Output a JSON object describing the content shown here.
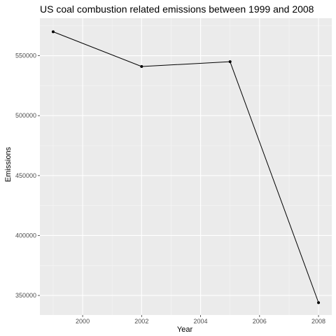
{
  "chart_data": {
    "type": "line",
    "title": "US coal combustion related emissions between 1999 and 2008",
    "xlabel": "Year",
    "ylabel": "Emissions",
    "x": [
      1999,
      2002,
      2005,
      2008
    ],
    "values": [
      570000,
      541000,
      545000,
      344000
    ],
    "x_ticks": [
      2000,
      2002,
      2004,
      2006,
      2008
    ],
    "x_tick_labels": [
      "2000",
      "2002",
      "2004",
      "2006",
      "2008"
    ],
    "y_ticks": [
      350000,
      400000,
      450000,
      500000,
      550000
    ],
    "y_tick_labels": [
      "350000",
      "400000",
      "450000",
      "500000",
      "550000"
    ],
    "xlim": [
      1998.55,
      2008.45
    ],
    "ylim": [
      333700,
      581300
    ],
    "grid": true,
    "legend": "none",
    "colors": {
      "panel": "#ebebeb",
      "grid_major": "#ffffff",
      "grid_minor": "#f5f5f5",
      "line": "#000000",
      "tick_text": "#4d4d4d"
    }
  }
}
